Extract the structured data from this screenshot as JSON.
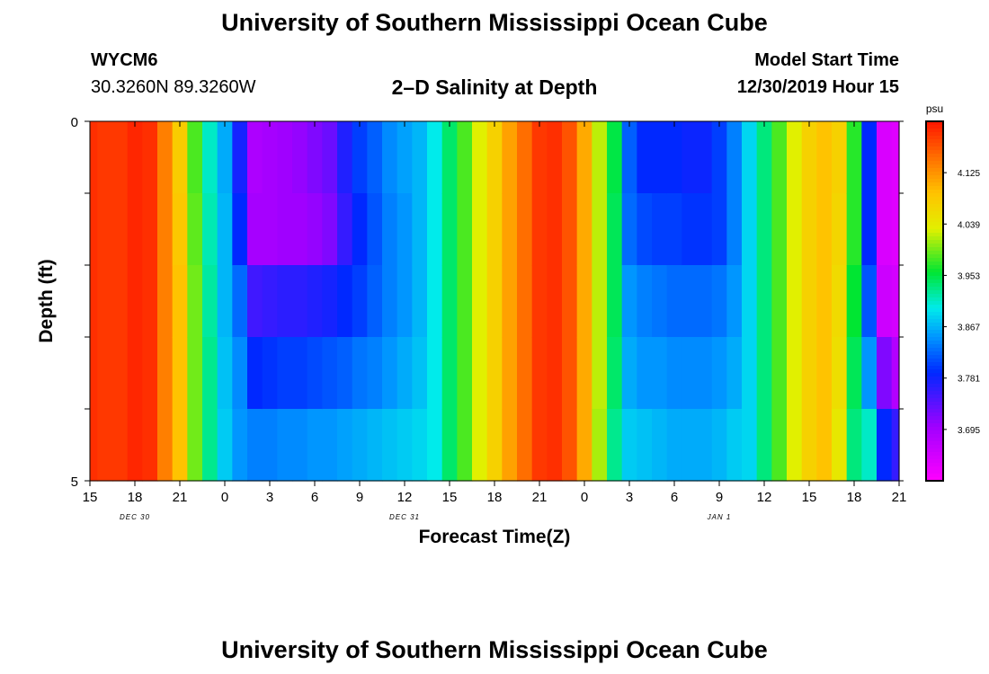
{
  "header": {
    "title_top": "University of Southern Mississippi Ocean Cube",
    "station_id": "WYCM6",
    "station_coords": "30.3260N 89.3260W",
    "plot_title": "2–D Salinity at Depth",
    "model_start_label": "Model Start Time",
    "model_start_value": "12/30/2019 Hour 15"
  },
  "footer": {
    "title_bottom": "University of Southern Mississippi Ocean Cube"
  },
  "chart_data": {
    "type": "heatmap",
    "title": "2–D Salinity at Depth",
    "xlabel": "Forecast Time(Z)",
    "ylabel": "Depth (ft)",
    "x_tick_labels": [
      "15",
      "18",
      "21",
      "0",
      "3",
      "6",
      "9",
      "12",
      "15",
      "18",
      "21",
      "0",
      "3",
      "6",
      "9",
      "12",
      "15",
      "18",
      "21"
    ],
    "date_labels": [
      {
        "label": "DEC 30",
        "at_tick": 1
      },
      {
        "label": "DEC 31",
        "at_tick": 7
      },
      {
        "label": "JAN 1",
        "at_tick": 14
      }
    ],
    "y_tick_labels": [
      "0",
      "5"
    ],
    "ylim": [
      0,
      5
    ],
    "x_range_hours": [
      0,
      54
    ],
    "depth_layers_ft": [
      0,
      1,
      2,
      3,
      4,
      5
    ],
    "colorbar": {
      "unit": "psu",
      "min": 3.609,
      "max": 4.211,
      "tick_labels": [
        "4.125",
        "4.039",
        "3.953",
        "3.867",
        "3.781",
        "3.695"
      ]
    },
    "salinity_normalized_by_hour": [
      {
        "h": 0,
        "v": [
          0.97,
          0.97,
          0.97,
          0.97,
          0.97
        ]
      },
      {
        "h": 1,
        "v": [
          0.96,
          0.96,
          0.96,
          0.96,
          0.96
        ]
      },
      {
        "h": 2,
        "v": [
          0.96,
          0.96,
          0.96,
          0.96,
          0.96
        ]
      },
      {
        "h": 3,
        "v": [
          0.98,
          0.98,
          0.98,
          0.98,
          0.98
        ]
      },
      {
        "h": 4,
        "v": [
          0.97,
          0.97,
          0.97,
          0.97,
          0.97
        ]
      },
      {
        "h": 5,
        "v": [
          0.88,
          0.88,
          0.88,
          0.88,
          0.88
        ]
      },
      {
        "h": 6,
        "v": [
          0.78,
          0.79,
          0.8,
          0.8,
          0.8
        ]
      },
      {
        "h": 7,
        "v": [
          0.62,
          0.63,
          0.64,
          0.64,
          0.64
        ]
      },
      {
        "h": 8,
        "v": [
          0.5,
          0.51,
          0.52,
          0.53,
          0.53
        ]
      },
      {
        "h": 9,
        "v": [
          0.42,
          0.43,
          0.43,
          0.44,
          0.45
        ]
      },
      {
        "h": 10,
        "v": [
          0.28,
          0.3,
          0.36,
          0.39,
          0.4
        ]
      },
      {
        "h": 11,
        "v": [
          0.13,
          0.14,
          0.24,
          0.3,
          0.38
        ]
      },
      {
        "h": 12,
        "v": [
          0.14,
          0.14,
          0.25,
          0.31,
          0.38
        ]
      },
      {
        "h": 13,
        "v": [
          0.15,
          0.15,
          0.26,
          0.32,
          0.39
        ]
      },
      {
        "h": 14,
        "v": [
          0.16,
          0.15,
          0.26,
          0.32,
          0.39
        ]
      },
      {
        "h": 15,
        "v": [
          0.18,
          0.16,
          0.27,
          0.33,
          0.4
        ]
      },
      {
        "h": 16,
        "v": [
          0.2,
          0.18,
          0.28,
          0.34,
          0.4
        ]
      },
      {
        "h": 17,
        "v": [
          0.27,
          0.25,
          0.3,
          0.35,
          0.41
        ]
      },
      {
        "h": 18,
        "v": [
          0.32,
          0.3,
          0.32,
          0.37,
          0.42
        ]
      },
      {
        "h": 19,
        "v": [
          0.35,
          0.34,
          0.35,
          0.38,
          0.43
        ]
      },
      {
        "h": 20,
        "v": [
          0.39,
          0.38,
          0.38,
          0.4,
          0.44
        ]
      },
      {
        "h": 21,
        "v": [
          0.41,
          0.4,
          0.4,
          0.42,
          0.45
        ]
      },
      {
        "h": 22,
        "v": [
          0.43,
          0.43,
          0.43,
          0.44,
          0.46
        ]
      },
      {
        "h": 23,
        "v": [
          0.48,
          0.48,
          0.48,
          0.48,
          0.48
        ]
      },
      {
        "h": 24,
        "v": [
          0.55,
          0.55,
          0.55,
          0.55,
          0.55
        ]
      },
      {
        "h": 25,
        "v": [
          0.62,
          0.62,
          0.62,
          0.62,
          0.62
        ]
      },
      {
        "h": 26,
        "v": [
          0.7,
          0.7,
          0.7,
          0.7,
          0.7
        ]
      },
      {
        "h": 27,
        "v": [
          0.77,
          0.77,
          0.77,
          0.77,
          0.77
        ]
      },
      {
        "h": 28,
        "v": [
          0.84,
          0.84,
          0.84,
          0.84,
          0.84
        ]
      },
      {
        "h": 29,
        "v": [
          0.9,
          0.9,
          0.9,
          0.9,
          0.9
        ]
      },
      {
        "h": 30,
        "v": [
          0.96,
          0.96,
          0.96,
          0.96,
          0.96
        ]
      },
      {
        "h": 31,
        "v": [
          0.97,
          0.97,
          0.97,
          0.97,
          0.97
        ]
      },
      {
        "h": 32,
        "v": [
          0.93,
          0.93,
          0.93,
          0.93,
          0.93
        ]
      },
      {
        "h": 33,
        "v": [
          0.83,
          0.83,
          0.83,
          0.83,
          0.83
        ]
      },
      {
        "h": 34,
        "v": [
          0.68,
          0.68,
          0.68,
          0.68,
          0.67
        ]
      },
      {
        "h": 35,
        "v": [
          0.57,
          0.56,
          0.56,
          0.55,
          0.53
        ]
      },
      {
        "h": 36,
        "v": [
          0.35,
          0.36,
          0.4,
          0.42,
          0.45
        ]
      },
      {
        "h": 37,
        "v": [
          0.3,
          0.33,
          0.38,
          0.4,
          0.44
        ]
      },
      {
        "h": 38,
        "v": [
          0.3,
          0.32,
          0.37,
          0.4,
          0.43
        ]
      },
      {
        "h": 39,
        "v": [
          0.3,
          0.32,
          0.36,
          0.39,
          0.42
        ]
      },
      {
        "h": 40,
        "v": [
          0.29,
          0.31,
          0.36,
          0.39,
          0.42
        ]
      },
      {
        "h": 41,
        "v": [
          0.29,
          0.31,
          0.36,
          0.39,
          0.42
        ]
      },
      {
        "h": 42,
        "v": [
          0.32,
          0.32,
          0.37,
          0.4,
          0.43
        ]
      },
      {
        "h": 43,
        "v": [
          0.38,
          0.38,
          0.4,
          0.42,
          0.45
        ]
      },
      {
        "h": 44,
        "v": [
          0.46,
          0.46,
          0.46,
          0.46,
          0.46
        ]
      },
      {
        "h": 45,
        "v": [
          0.54,
          0.54,
          0.54,
          0.54,
          0.54
        ]
      },
      {
        "h": 46,
        "v": [
          0.62,
          0.62,
          0.62,
          0.62,
          0.62
        ]
      },
      {
        "h": 47,
        "v": [
          0.7,
          0.7,
          0.7,
          0.7,
          0.7
        ]
      },
      {
        "h": 48,
        "v": [
          0.77,
          0.77,
          0.77,
          0.77,
          0.77
        ]
      },
      {
        "h": 49,
        "v": [
          0.8,
          0.8,
          0.8,
          0.8,
          0.8
        ]
      },
      {
        "h": 50,
        "v": [
          0.77,
          0.76,
          0.75,
          0.74,
          0.72
        ]
      },
      {
        "h": 51,
        "v": [
          0.6,
          0.6,
          0.58,
          0.56,
          0.54
        ]
      },
      {
        "h": 52,
        "v": [
          0.3,
          0.3,
          0.34,
          0.4,
          0.5
        ]
      },
      {
        "h": 53,
        "v": [
          0.06,
          0.06,
          0.08,
          0.18,
          0.3
        ]
      },
      {
        "h": 54,
        "v": [
          0.05,
          0.05,
          0.07,
          0.12,
          0.25
        ]
      }
    ]
  }
}
